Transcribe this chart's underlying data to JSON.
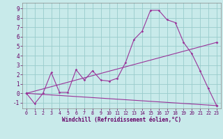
{
  "background_color": "#c8eaea",
  "line_color": "#993399",
  "grid_color": "#99cccc",
  "xlabel": "Windchill (Refroidissement éolien,°C)",
  "xlabel_color": "#660066",
  "tick_color": "#660066",
  "spine_color": "#888888",
  "xlim": [
    -0.5,
    23.5
  ],
  "ylim": [
    -1.6,
    9.6
  ],
  "xticks": [
    0,
    1,
    2,
    3,
    4,
    5,
    6,
    7,
    8,
    9,
    10,
    11,
    12,
    13,
    14,
    15,
    16,
    17,
    18,
    19,
    20,
    21,
    22,
    23
  ],
  "yticks": [
    -1,
    0,
    1,
    2,
    3,
    4,
    5,
    6,
    7,
    8,
    9
  ],
  "line1_x": [
    0,
    1,
    2,
    3,
    4,
    5,
    6,
    7,
    8,
    9,
    10,
    11,
    12,
    13,
    14,
    15,
    16,
    17,
    18,
    19,
    20,
    21,
    22,
    23
  ],
  "line1_y": [
    0.0,
    -1.1,
    0.0,
    2.2,
    0.1,
    0.1,
    2.5,
    1.4,
    2.4,
    1.4,
    1.3,
    1.6,
    3.3,
    5.7,
    6.6,
    8.8,
    8.8,
    7.8,
    7.5,
    5.4,
    4.2,
    2.4,
    0.5,
    -1.3
  ],
  "line2_x": [
    0,
    23
  ],
  "line2_y": [
    0.0,
    -1.3
  ],
  "line3_x": [
    0,
    23
  ],
  "line3_y": [
    0.0,
    5.4
  ],
  "figsize": [
    3.2,
    2.0
  ],
  "dpi": 100
}
